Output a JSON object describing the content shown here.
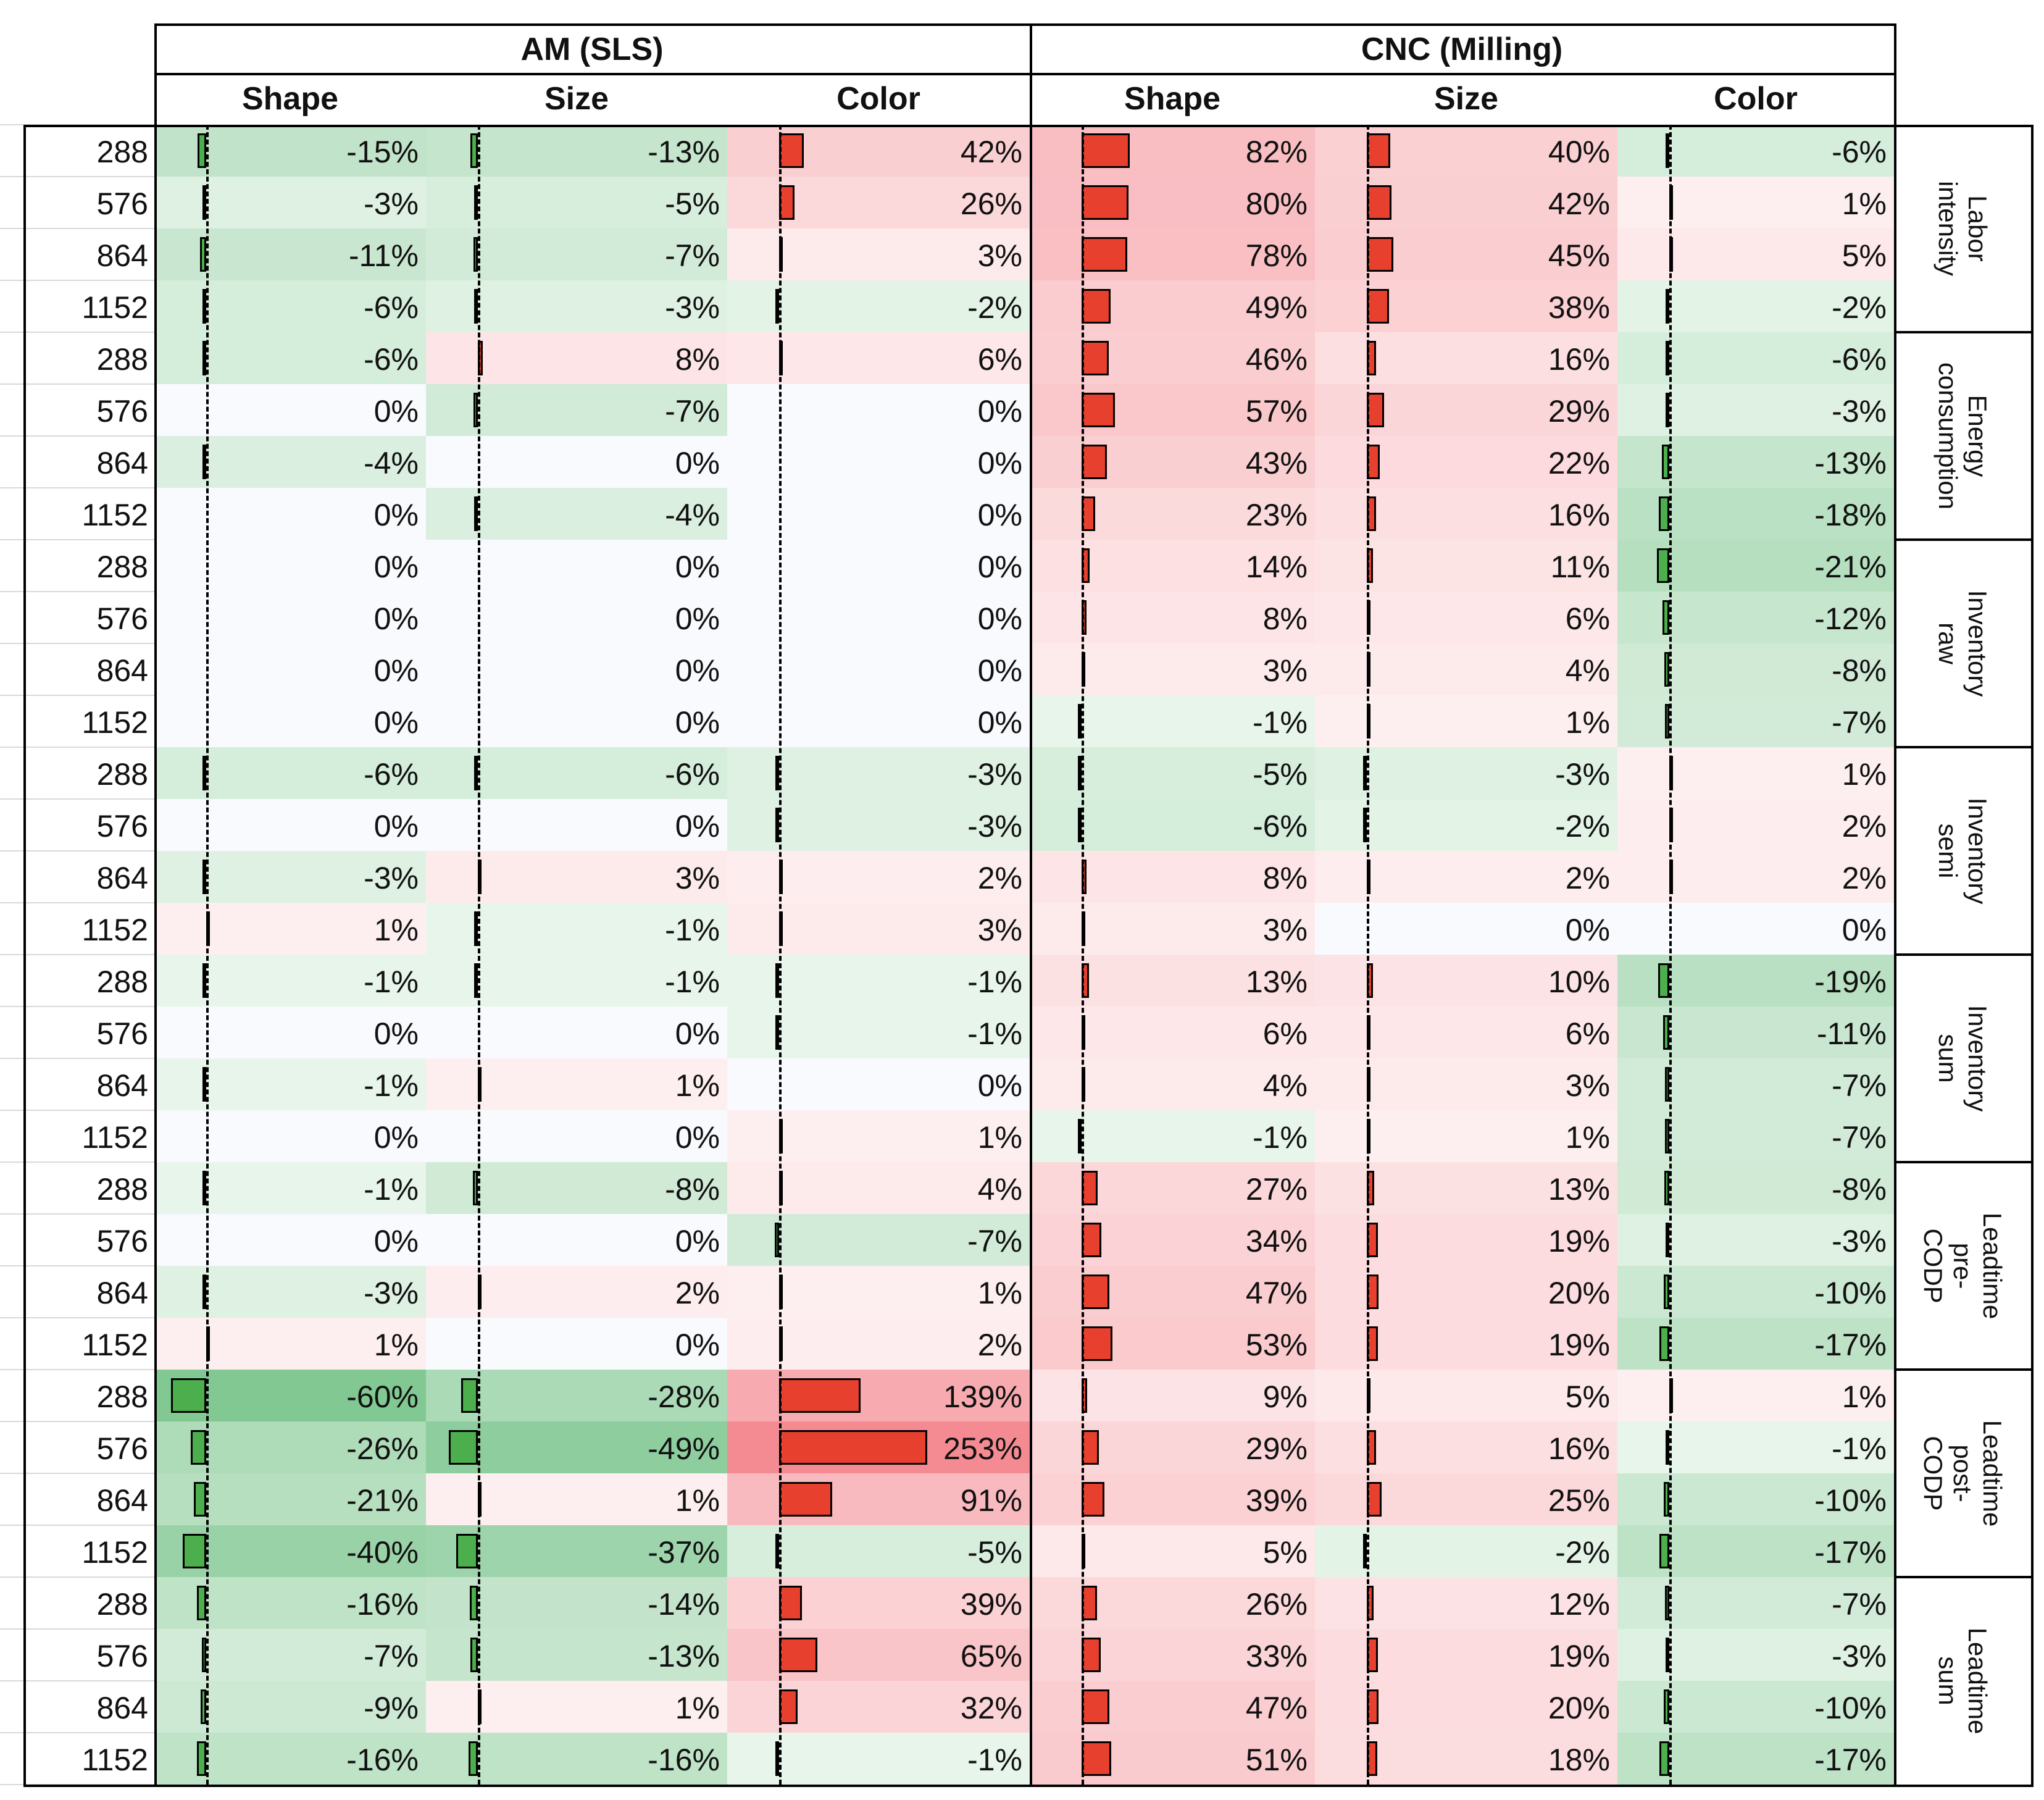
{
  "colors": {
    "neg_bar": "#4cae4c",
    "pos_bar": "#e8402e",
    "bar_border": "#000000"
  },
  "chart_data": {
    "type": "table",
    "title": "",
    "groups": [
      {
        "name": "AM (SLS)",
        "columns": [
          "Shape",
          "Size",
          "Color"
        ]
      },
      {
        "name": "CNC (Milling)",
        "columns": [
          "Shape",
          "Size",
          "Color"
        ]
      }
    ],
    "row_labels": [
      "288",
      "576",
      "864",
      "1152",
      "288",
      "576",
      "864",
      "1152",
      "288",
      "576",
      "864",
      "1152",
      "288",
      "576",
      "864",
      "1152",
      "288",
      "576",
      "864",
      "1152",
      "288",
      "576",
      "864",
      "1152",
      "288",
      "576",
      "864",
      "1152",
      "288",
      "576",
      "864",
      "1152"
    ],
    "sections": [
      "Labor intensity",
      "Energy\nconsumption",
      "Inventory raw",
      "Inventory semi",
      "Inventory sum",
      "Leadtime pre-\nCODP",
      "Leadtime post-\nCODP",
      "Leadtime sum"
    ],
    "unit": "%",
    "columns": [
      {
        "group": "AM (SLS)",
        "name": "Shape",
        "values": [
          -15,
          -3,
          -11,
          -6,
          -6,
          0,
          -4,
          0,
          0,
          0,
          0,
          0,
          -6,
          0,
          -3,
          1,
          -1,
          0,
          -1,
          0,
          -1,
          0,
          -3,
          1,
          -60,
          -26,
          -21,
          -40,
          -16,
          -7,
          -9,
          -16
        ]
      },
      {
        "group": "AM (SLS)",
        "name": "Size",
        "values": [
          -13,
          -5,
          -7,
          -3,
          8,
          -7,
          0,
          -4,
          0,
          0,
          0,
          0,
          -6,
          0,
          3,
          -1,
          -1,
          0,
          1,
          0,
          -8,
          0,
          2,
          0,
          -28,
          -49,
          1,
          -37,
          -14,
          -13,
          1,
          -16
        ]
      },
      {
        "group": "AM (SLS)",
        "name": "Color",
        "values": [
          42,
          26,
          3,
          -2,
          6,
          0,
          0,
          0,
          0,
          0,
          0,
          0,
          -3,
          -3,
          2,
          3,
          -1,
          -1,
          0,
          1,
          4,
          -7,
          1,
          2,
          139,
          253,
          91,
          -5,
          39,
          65,
          32,
          -1
        ]
      },
      {
        "group": "CNC (Milling)",
        "name": "Shape",
        "values": [
          82,
          80,
          78,
          49,
          46,
          57,
          43,
          23,
          14,
          8,
          3,
          -1,
          -5,
          -6,
          8,
          3,
          13,
          6,
          4,
          -1,
          27,
          34,
          47,
          53,
          9,
          29,
          39,
          5,
          26,
          33,
          47,
          51
        ]
      },
      {
        "group": "CNC (Milling)",
        "name": "Size",
        "values": [
          40,
          42,
          45,
          38,
          16,
          29,
          22,
          16,
          11,
          6,
          4,
          1,
          -3,
          -2,
          2,
          0,
          10,
          6,
          3,
          1,
          13,
          19,
          20,
          19,
          5,
          16,
          25,
          -2,
          12,
          19,
          20,
          18
        ]
      },
      {
        "group": "CNC (Milling)",
        "name": "Color",
        "values": [
          -6,
          1,
          5,
          -2,
          -6,
          -3,
          -13,
          -18,
          -21,
          -12,
          -8,
          -7,
          1,
          2,
          2,
          0,
          -19,
          -11,
          -7,
          -7,
          -8,
          -3,
          -10,
          -17,
          1,
          -1,
          -10,
          -17,
          -7,
          -3,
          -10,
          -17
        ]
      }
    ]
  }
}
